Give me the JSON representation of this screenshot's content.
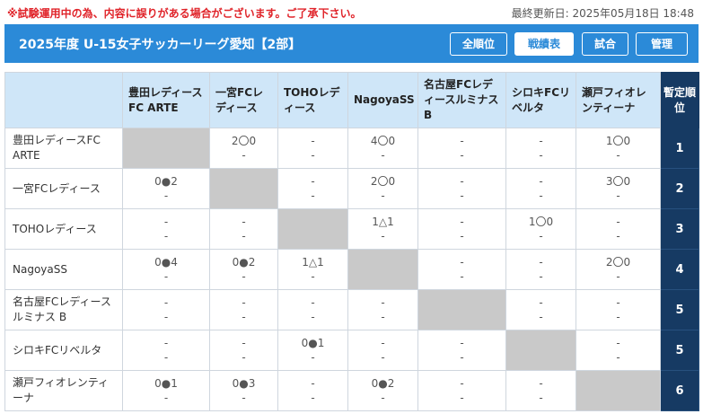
{
  "notice": "※試験運用中の為、内容に誤りがある場合がございます。ご了承下さい。",
  "last_updated": "最終更新日: 2025年05月18日 18:48",
  "league_title": "2025年度 U-15女子サッカーリーグ愛知【2部】",
  "nav": [
    "全順位",
    "戦績表",
    "試合",
    "管理"
  ],
  "nav_active": 1,
  "rank_header": "暫定順位",
  "columns": [
    "豊田レディースFC ARTE",
    "一宮FCレディース",
    "TOHOレディース",
    "NagoyaSS",
    "名古屋FCレディースルミナス B",
    "シロキFCリベルタ",
    "瀬戸フィオレンティーナ"
  ],
  "rows": [
    {
      "team": "豊田レディースFC ARTE",
      "rank": "1",
      "cells": [
        null,
        [
          "2〇0",
          "-"
        ],
        [
          "-",
          "-"
        ],
        [
          "4〇0",
          "-"
        ],
        [
          "-",
          "-"
        ],
        [
          "-",
          "-"
        ],
        [
          "1〇0",
          "-"
        ]
      ]
    },
    {
      "team": "一宮FCレディース",
      "rank": "2",
      "cells": [
        [
          "0●2",
          "-"
        ],
        null,
        [
          "-",
          "-"
        ],
        [
          "2〇0",
          "-"
        ],
        [
          "-",
          "-"
        ],
        [
          "-",
          "-"
        ],
        [
          "3〇0",
          "-"
        ]
      ]
    },
    {
      "team": "TOHOレディース",
      "rank": "3",
      "cells": [
        [
          "-",
          "-"
        ],
        [
          "-",
          "-"
        ],
        null,
        [
          "1△1",
          "-"
        ],
        [
          "-",
          "-"
        ],
        [
          "1〇0",
          "-"
        ],
        [
          "-",
          "-"
        ]
      ]
    },
    {
      "team": "NagoyaSS",
      "rank": "4",
      "cells": [
        [
          "0●4",
          "-"
        ],
        [
          "0●2",
          "-"
        ],
        [
          "1△1",
          "-"
        ],
        null,
        [
          "-",
          "-"
        ],
        [
          "-",
          "-"
        ],
        [
          "2〇0",
          "-"
        ]
      ]
    },
    {
      "team": "名古屋FCレディースルミナス B",
      "rank": "5",
      "cells": [
        [
          "-",
          "-"
        ],
        [
          "-",
          "-"
        ],
        [
          "-",
          "-"
        ],
        [
          "-",
          "-"
        ],
        null,
        [
          "-",
          "-"
        ],
        [
          "-",
          "-"
        ]
      ]
    },
    {
      "team": "シロキFCリベルタ",
      "rank": "5",
      "cells": [
        [
          "-",
          "-"
        ],
        [
          "-",
          "-"
        ],
        [
          "0●1",
          "-"
        ],
        [
          "-",
          "-"
        ],
        [
          "-",
          "-"
        ],
        null,
        [
          "-",
          "-"
        ]
      ]
    },
    {
      "team": "瀬戸フィオレンティーナ",
      "rank": "6",
      "cells": [
        [
          "0●1",
          "-"
        ],
        [
          "0●3",
          "-"
        ],
        [
          "-",
          "-"
        ],
        [
          "0●2",
          "-"
        ],
        [
          "-",
          "-"
        ],
        [
          "-",
          "-"
        ],
        null
      ]
    }
  ],
  "colors": {
    "header_bg": "#2b8ad8",
    "table_head_bg": "#cfe6f8",
    "rank_bg": "#163a63",
    "diag_bg": "#c9c9c9",
    "notice_red": "#e0242a"
  }
}
